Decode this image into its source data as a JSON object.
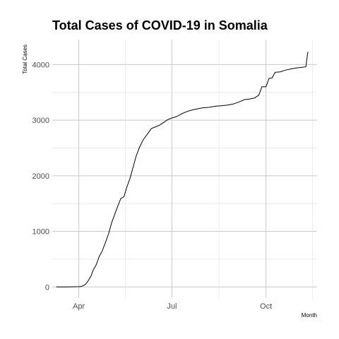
{
  "chart_data": {
    "type": "line",
    "title": "Total Cases of COVID-19 in Somalia",
    "xlabel": "Month",
    "ylabel": "Total Cases",
    "grid": true,
    "legend": "none",
    "x_tick_labels": [
      "Apr",
      "Jul",
      "Oct"
    ],
    "x_tick_dates": [
      "2020-04-01",
      "2020-07-01",
      "2020-10-01"
    ],
    "y_ticks": [
      0,
      1000,
      2000,
      3000,
      4000
    ],
    "xlim": [
      "2020-03-06",
      "2020-11-20"
    ],
    "ylim": [
      -200,
      4450
    ],
    "series": [
      {
        "color": "#000000",
        "points": [
          [
            "2020-03-10",
            0
          ],
          [
            "2020-03-16",
            1
          ],
          [
            "2020-03-22",
            1
          ],
          [
            "2020-03-28",
            3
          ],
          [
            "2020-04-01",
            5
          ],
          [
            "2020-04-03",
            8
          ],
          [
            "2020-04-05",
            20
          ],
          [
            "2020-04-07",
            40
          ],
          [
            "2020-04-09",
            80
          ],
          [
            "2020-04-11",
            135
          ],
          [
            "2020-04-13",
            200
          ],
          [
            "2020-04-15",
            300
          ],
          [
            "2020-04-18",
            400
          ],
          [
            "2020-04-21",
            550
          ],
          [
            "2020-04-24",
            650
          ],
          [
            "2020-04-27",
            800
          ],
          [
            "2020-04-30",
            950
          ],
          [
            "2020-05-03",
            1150
          ],
          [
            "2020-05-06",
            1300
          ],
          [
            "2020-05-09",
            1450
          ],
          [
            "2020-05-12",
            1590
          ],
          [
            "2020-05-15",
            1620
          ],
          [
            "2020-05-18",
            1800
          ],
          [
            "2020-05-21",
            1950
          ],
          [
            "2020-05-24",
            2150
          ],
          [
            "2020-05-27",
            2350
          ],
          [
            "2020-05-30",
            2500
          ],
          [
            "2020-06-03",
            2650
          ],
          [
            "2020-06-07",
            2750
          ],
          [
            "2020-06-11",
            2850
          ],
          [
            "2020-06-15",
            2880
          ],
          [
            "2020-06-19",
            2910
          ],
          [
            "2020-06-23",
            2960
          ],
          [
            "2020-06-27",
            3010
          ],
          [
            "2020-07-01",
            3040
          ],
          [
            "2020-07-05",
            3060
          ],
          [
            "2020-07-10",
            3110
          ],
          [
            "2020-07-15",
            3150
          ],
          [
            "2020-07-20",
            3180
          ],
          [
            "2020-07-25",
            3200
          ],
          [
            "2020-07-31",
            3220
          ],
          [
            "2020-08-06",
            3230
          ],
          [
            "2020-08-12",
            3250
          ],
          [
            "2020-08-18",
            3260
          ],
          [
            "2020-08-24",
            3270
          ],
          [
            "2020-08-30",
            3290
          ],
          [
            "2020-09-05",
            3330
          ],
          [
            "2020-09-10",
            3370
          ],
          [
            "2020-09-15",
            3380
          ],
          [
            "2020-09-20",
            3400
          ],
          [
            "2020-09-24",
            3450
          ],
          [
            "2020-09-27",
            3600
          ],
          [
            "2020-10-01",
            3600
          ],
          [
            "2020-10-04",
            3750
          ],
          [
            "2020-10-07",
            3760
          ],
          [
            "2020-10-10",
            3860
          ],
          [
            "2020-10-15",
            3870
          ],
          [
            "2020-10-20",
            3900
          ],
          [
            "2020-10-25",
            3920
          ],
          [
            "2020-10-31",
            3940
          ],
          [
            "2020-11-05",
            3950
          ],
          [
            "2020-11-09",
            3960
          ],
          [
            "2020-11-10",
            4100
          ],
          [
            "2020-11-11",
            4230
          ]
        ]
      }
    ]
  }
}
